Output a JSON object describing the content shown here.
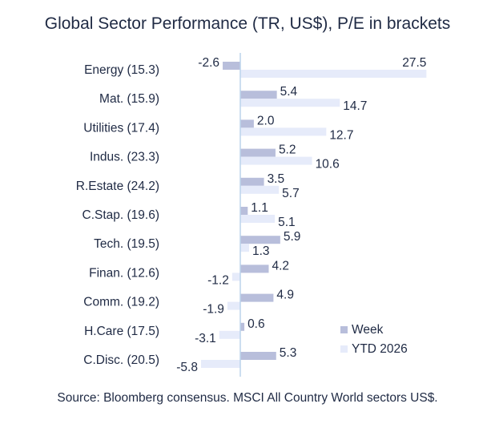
{
  "chart_data": {
    "type": "bar",
    "orientation": "horizontal",
    "title": "Global Sector Performance (TR, US$), P/E in brackets",
    "categories": [
      "Energy (15.3)",
      "Mat. (15.9)",
      "Utilities (17.4)",
      "Indus. (23.3)",
      "R.Estate (24.2)",
      "C.Stap. (19.6)",
      "Tech. (19.5)",
      "Finan. (12.6)",
      "Comm. (19.2)",
      "H.Care (17.5)",
      "C.Disc. (20.5)"
    ],
    "series": [
      {
        "name": "Week",
        "color": "#b8bedb",
        "values": [
          -2.6,
          5.4,
          2.0,
          5.2,
          3.5,
          1.1,
          5.9,
          4.2,
          4.9,
          0.6,
          5.3
        ]
      },
      {
        "name": "YTD 2026",
        "color": "#e6ebfa",
        "values": [
          27.5,
          14.7,
          12.7,
          10.6,
          5.7,
          5.1,
          1.3,
          -1.2,
          -1.9,
          -3.1,
          -5.8
        ]
      }
    ],
    "value_labels": {
      "Week": [
        "-2.6",
        "5.4",
        "2.0",
        "5.2",
        "3.5",
        "1.1",
        "5.9",
        "4.2",
        "4.9",
        "0.6",
        "5.3"
      ],
      "YTD 2026": [
        "27.5",
        "14.7",
        "12.7",
        "10.6",
        "5.7",
        "5.1",
        "1.3",
        "-1.2",
        "-1.9",
        "-3.1",
        "-5.8"
      ]
    },
    "axis_color": "#bcd4ec",
    "legend": "bottom-right",
    "grid": false,
    "source": "Source: Bloomberg consensus. MSCI All Country World sectors US$."
  }
}
